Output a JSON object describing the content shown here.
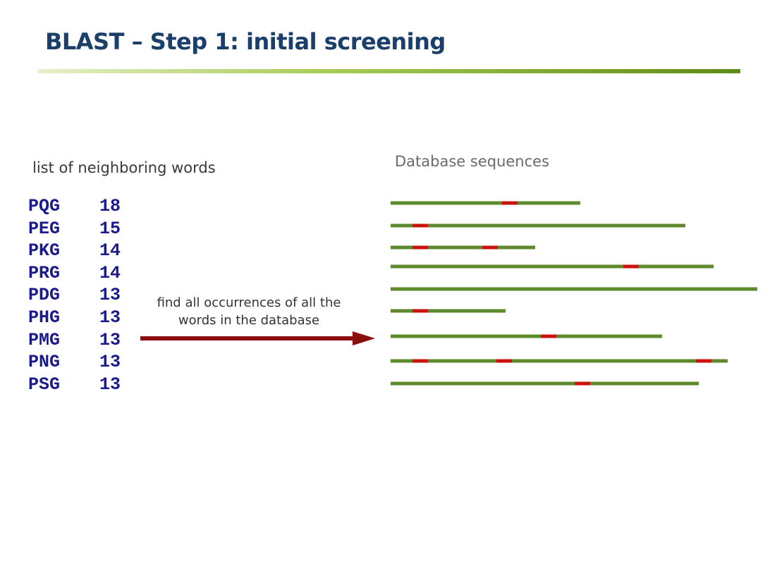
{
  "title": "BLAST – Step 1: initial screening",
  "words_heading": "list of neighboring words",
  "words": [
    {
      "word": "PQG",
      "score": "18"
    },
    {
      "word": "PEG",
      "score": "15"
    },
    {
      "word": "PKG",
      "score": "14"
    },
    {
      "word": "PRG",
      "score": "14"
    },
    {
      "word": "PDG",
      "score": "13"
    },
    {
      "word": "PHG",
      "score": "13"
    },
    {
      "word": "PMG",
      "score": "13"
    },
    {
      "word": "PNG",
      "score": "13"
    },
    {
      "word": "PSG",
      "score": "13"
    }
  ],
  "arrow_caption": "find all occurrences of all the words in the database",
  "database_heading": "Database sequences",
  "colors": {
    "title": "#1b3f6b",
    "words": "#1a1a8c",
    "sequence": "#5e8a2c",
    "hit": "#cc1111",
    "arrow": "#8b0d0d"
  }
}
